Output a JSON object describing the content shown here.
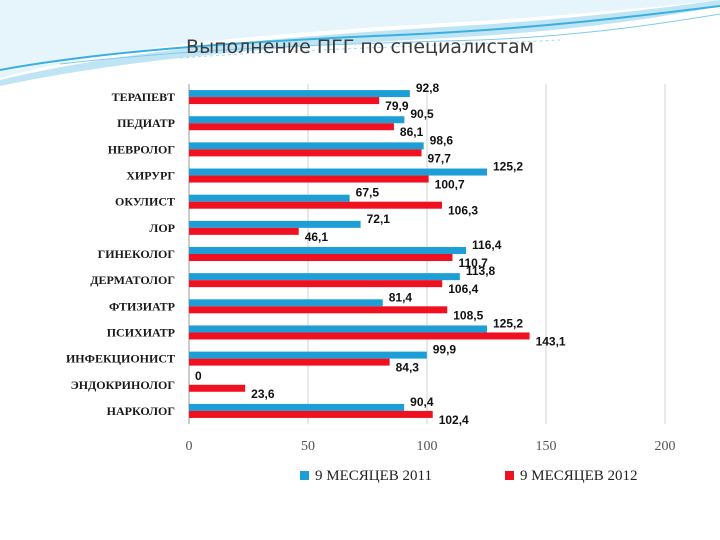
{
  "title": "Выполнение ПГГ по специалистам",
  "colors": {
    "series_2011": "#1E9ED6",
    "series_2012": "#F01020",
    "grid": "#d0d0d0"
  },
  "chart_data": {
    "type": "bar",
    "orientation": "horizontal",
    "categories": [
      "ТЕРАПЕВТ",
      "ПЕДИАТР",
      "НЕВРОЛОГ",
      "ХИРУРГ",
      "ОКУЛИСТ",
      "ЛОР",
      "ГИНЕКОЛОГ",
      "ДЕРМАТОЛОГ",
      "ФТИЗИАТР",
      "ПСИХИАТР",
      "ИНФЕКЦИОНИСТ",
      "ЭНДОКРИНОЛОГ",
      "НАРКОЛОГ"
    ],
    "series": [
      {
        "name": "9 МЕСЯЦЕВ 2011",
        "values": [
          92.8,
          90.5,
          98.6,
          125.2,
          67.5,
          72.1,
          116.4,
          113.8,
          81.4,
          125.2,
          99.9,
          0,
          90.4
        ],
        "labels": [
          "92,8",
          "90,5",
          "98,6",
          "125,2",
          "67,5",
          "72,1",
          "116,4",
          "113,8",
          "81,4",
          "125,2",
          "99,9",
          "0",
          "90,4"
        ]
      },
      {
        "name": "9 МЕСЯЦЕВ 2012",
        "values": [
          79.9,
          86.1,
          97.7,
          100.7,
          106.3,
          46.1,
          110.7,
          106.4,
          108.5,
          143.1,
          84.3,
          23.6,
          102.4
        ],
        "labels": [
          "79,9",
          "86,1",
          "97,7",
          "100,7",
          "106,3",
          "46,1",
          "110,7",
          "106,4",
          "108,5",
          "143,1",
          "84,3",
          "23,6",
          "102,4"
        ]
      }
    ],
    "xlim": [
      0,
      200
    ],
    "xticks": [
      "0",
      "50",
      "100",
      "150",
      "200"
    ],
    "grid": true,
    "legend": "bottom"
  }
}
